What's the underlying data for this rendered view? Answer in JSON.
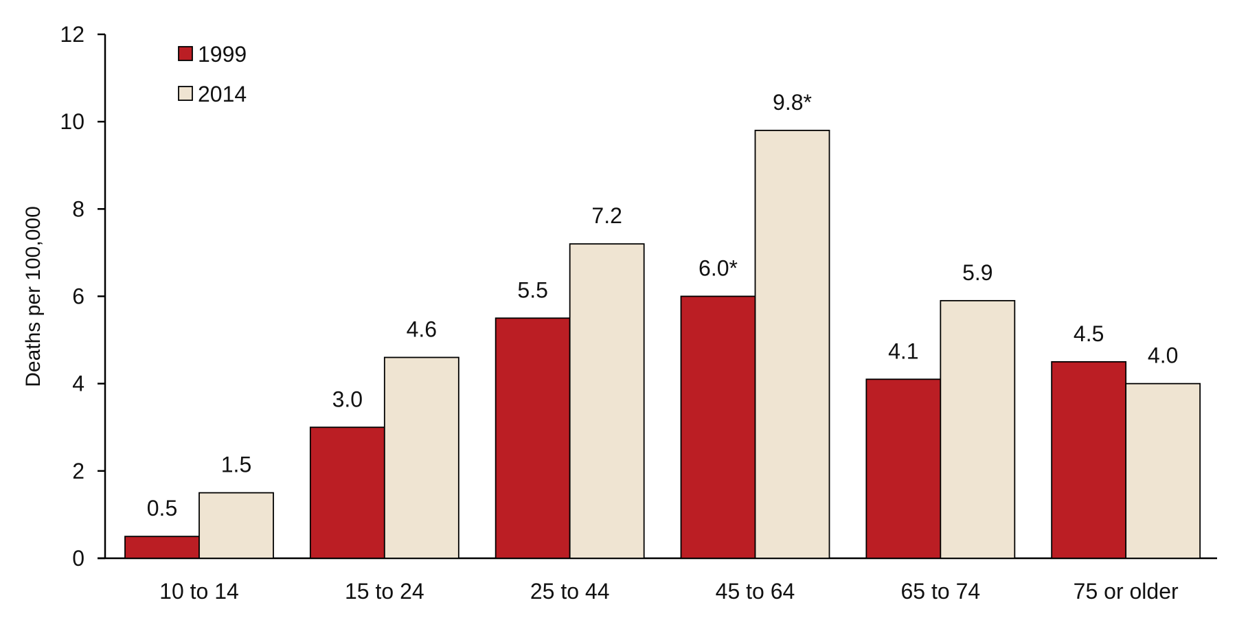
{
  "chart_data": {
    "type": "bar",
    "ylabel": "Deaths per 100,000",
    "xlabel": "",
    "ylim": [
      0,
      12
    ],
    "yticks": [
      0,
      2,
      4,
      6,
      8,
      10,
      12
    ],
    "categories": [
      "10 to 14",
      "15 to 24",
      "25 to 44",
      "45 to 64",
      "65 to 74",
      "75 or older"
    ],
    "series": [
      {
        "name": "1999",
        "color": "#bb1e24",
        "values": [
          0.5,
          3.0,
          5.5,
          6.0,
          4.1,
          4.5
        ],
        "labels": [
          "0.5",
          "3.0",
          "5.5",
          "6.0*",
          "4.1",
          "4.5"
        ]
      },
      {
        "name": "2014",
        "color": "#efe4d2",
        "values": [
          1.5,
          4.6,
          7.2,
          9.8,
          5.9,
          4.0
        ],
        "labels": [
          "1.5",
          "4.6",
          "7.2",
          "9.8*",
          "5.9",
          "4.0"
        ]
      }
    ],
    "grid": false,
    "legend_position": "top-left"
  }
}
